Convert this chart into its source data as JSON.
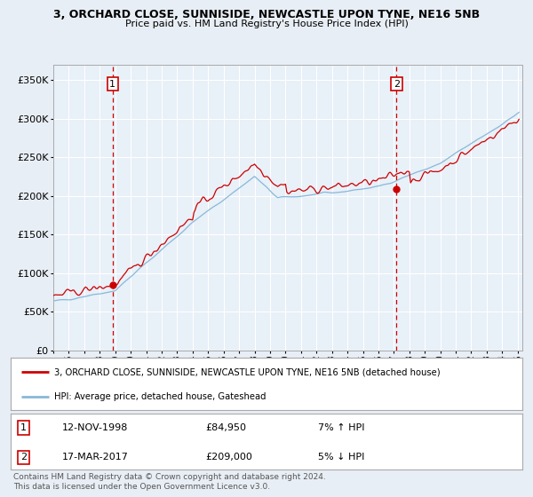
{
  "title1": "3, ORCHARD CLOSE, SUNNISIDE, NEWCASTLE UPON TYNE, NE16 5NB",
  "title2": "Price paid vs. HM Land Registry's House Price Index (HPI)",
  "background_color": "#e8eef5",
  "plot_bg_color": "#e8f0f8",
  "ytick_values": [
    0,
    50000,
    100000,
    150000,
    200000,
    250000,
    300000,
    350000
  ],
  "ylim": [
    0,
    370000
  ],
  "sale1_date": "12-NOV-1998",
  "sale1_price": 84950,
  "sale1_label": "1",
  "sale1_pct": "7% ↑ HPI",
  "sale2_date": "17-MAR-2017",
  "sale2_price": 209000,
  "sale2_label": "2",
  "sale2_pct": "5% ↓ HPI",
  "legend_red": "3, ORCHARD CLOSE, SUNNISIDE, NEWCASTLE UPON TYNE, NE16 5NB (detached house)",
  "legend_blue": "HPI: Average price, detached house, Gateshead",
  "footer": "Contains HM Land Registry data © Crown copyright and database right 2024.\nThis data is licensed under the Open Government Licence v3.0.",
  "red_color": "#cc0000",
  "blue_color": "#88b8d8",
  "vline_color": "#cc0000",
  "marker_color": "#cc0000",
  "box_color": "#cc0000"
}
